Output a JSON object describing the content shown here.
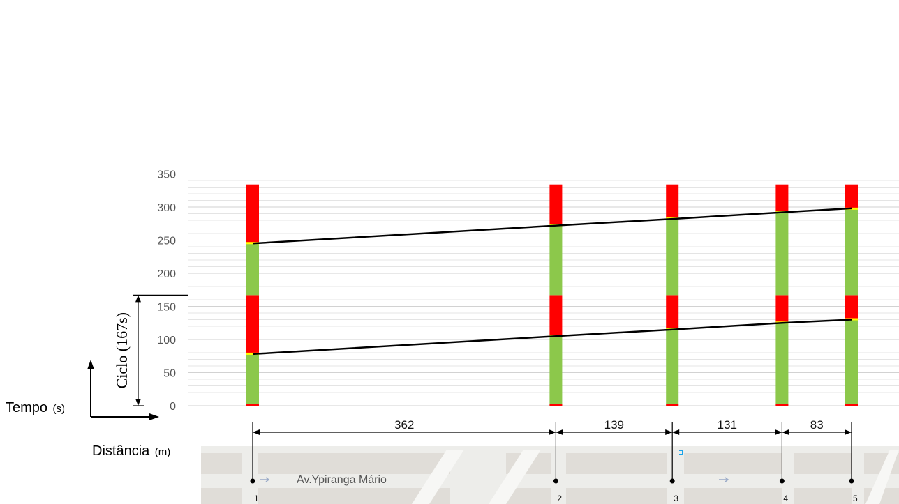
{
  "chart_data": {
    "type": "time-space diagram",
    "y_axis": {
      "ticks": [
        0,
        50,
        100,
        150,
        200,
        250,
        300,
        350
      ],
      "range": [
        0,
        350
      ],
      "label": "Tempo",
      "unit": "(s)"
    },
    "x_axis": {
      "label": "Distância",
      "unit": "(m)"
    },
    "cycle_label": "Ciclo (167s)",
    "cycle_seconds": 167,
    "signals": [
      {
        "name": "1",
        "cumulative_distance_m": 0,
        "green_end_s": 78,
        "offset_s": 0
      },
      {
        "name": "2",
        "cumulative_distance_m": 362,
        "green_end_s": 105,
        "offset_s": 0
      },
      {
        "name": "3",
        "cumulative_distance_m": 501,
        "green_end_s": 115,
        "offset_s": 0
      },
      {
        "name": "4",
        "cumulative_distance_m": 632,
        "green_end_s": 125,
        "offset_s": 0
      },
      {
        "name": "5",
        "cumulative_distance_m": 715,
        "green_end_s": 130,
        "offset_s": 0
      }
    ],
    "segments": [
      362,
      139,
      131,
      83
    ],
    "progression_bands": [
      {
        "points": [
          [
            0,
            78
          ],
          [
            362,
            105
          ],
          [
            501,
            115
          ],
          [
            632,
            125
          ],
          [
            715,
            130
          ]
        ]
      },
      {
        "points": [
          [
            0,
            245
          ],
          [
            362,
            272
          ],
          [
            501,
            282
          ],
          [
            632,
            292
          ],
          [
            715,
            298
          ]
        ]
      }
    ],
    "cycles_shown": 2,
    "colors": {
      "green": "#8cc84b",
      "red": "#ff0000",
      "amber": "#ffff00",
      "band": "#000000",
      "grid": "#e4e4e4"
    }
  },
  "map": {
    "street_name": "Av.Ypiranga Mário"
  }
}
